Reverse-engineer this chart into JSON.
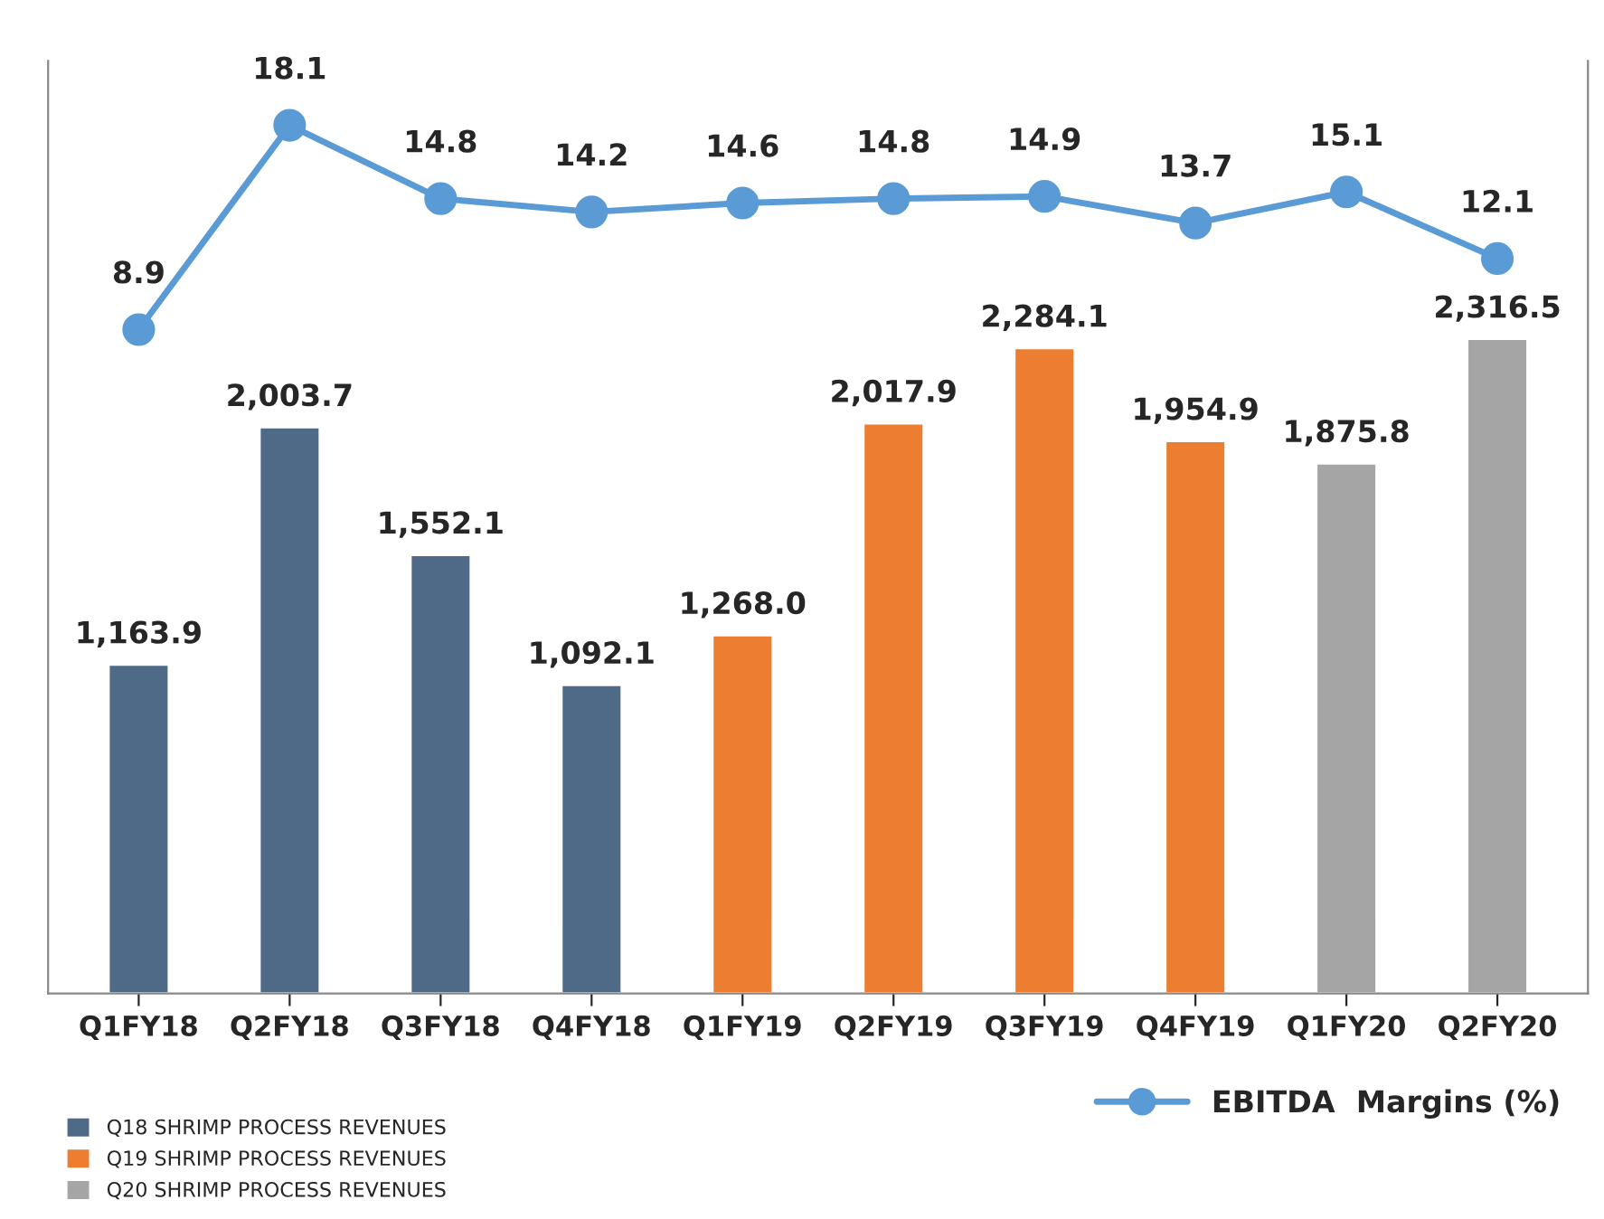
{
  "chart_data": {
    "type": "bar",
    "categories": [
      "Q1FY18",
      "Q2FY18",
      "Q3FY18",
      "Q4FY18",
      "Q1FY19",
      "Q2FY19",
      "Q3FY19",
      "Q4FY19",
      "Q1FY20",
      "Q2FY20"
    ],
    "ylim": [
      0,
      3300
    ],
    "y2lim": [
      -21,
      21
    ],
    "tick_labels": "x",
    "grid": false,
    "legend": "bottom",
    "data_labels": false,
    "series": [
      {
        "name": "Q18 SHRIMP PROCESS REVENUES",
        "color": "#4f6a87",
        "values": [
          1163.9,
          2003.7,
          1552.1,
          1092.1,
          null,
          null,
          null,
          null,
          null,
          null
        ],
        "value_labels": [
          "1,163.9",
          "2,003.7",
          "1,552.1",
          "1,092.1",
          null,
          null,
          null,
          null,
          null,
          null
        ]
      },
      {
        "name": "Q19 SHRIMP PROCESS REVENUES",
        "color": "#ed7d31",
        "values": [
          null,
          null,
          null,
          null,
          1268.0,
          2017.9,
          2284.1,
          1954.9,
          null,
          null
        ],
        "value_labels": [
          null,
          null,
          null,
          null,
          "1,268.0",
          "2,017.9",
          "2,284.1",
          "1,954.9",
          null,
          null
        ]
      },
      {
        "name": "Q20 SHRIMP PROCESS REVENUES",
        "color": "#a5a5a5",
        "values": [
          null,
          null,
          null,
          null,
          null,
          null,
          null,
          null,
          1875.8,
          2316.5
        ],
        "value_labels": [
          null,
          null,
          null,
          null,
          null,
          null,
          null,
          null,
          "1,875.8",
          "2,316.5"
        ]
      },
      {
        "name": "EBITDA  Margins (%)",
        "type": "line",
        "axis": "y2",
        "color": "#5b9bd5",
        "marker": "circle",
        "line_style": "solid",
        "values": [
          8.9,
          18.1,
          14.8,
          14.2,
          14.6,
          14.8,
          14.9,
          13.7,
          15.1,
          12.1
        ],
        "value_labels": [
          "8.9",
          "18.1",
          "14.8",
          "14.2",
          "14.6",
          "14.8",
          "14.9",
          "13.7",
          "15.1",
          "12.1"
        ]
      }
    ]
  }
}
